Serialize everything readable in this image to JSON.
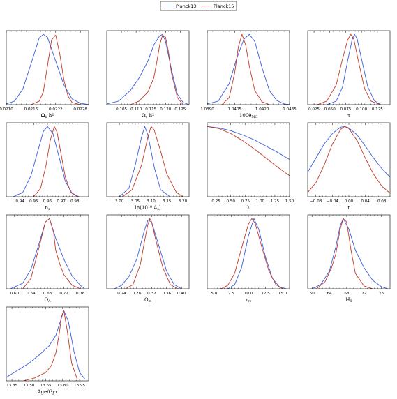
{
  "chart_data": {
    "type": "line",
    "title": "",
    "legend": {
      "placement": "top-center",
      "entries": [
        {
          "name": "Planck13",
          "color": "#3b5bdb"
        },
        {
          "name": "Planck15",
          "color": "#c0392b"
        }
      ]
    },
    "panels": [
      {
        "xlabel": "Ω_b h^2",
        "xlim": [
          0.021,
          0.023
        ],
        "xticks": [
          "0.0210",
          "0.0216",
          "0.0222",
          "0.0228"
        ],
        "xtick_values": [
          0.021,
          0.0216,
          0.0222,
          0.0228
        ],
        "series": [
          {
            "name": "Planck13",
            "x": [
              0.021,
              0.0212,
              0.0214,
              0.0216,
              0.0218,
              0.0219,
              0.022,
              0.0222,
              0.0224,
              0.0226,
              0.0228,
              0.023
            ],
            "y": [
              0.01,
              0.05,
              0.22,
              0.58,
              0.95,
              1.0,
              0.96,
              0.62,
              0.28,
              0.08,
              0.02,
              0.0
            ]
          },
          {
            "name": "Planck15",
            "x": [
              0.0216,
              0.0218,
              0.0219,
              0.022,
              0.0221,
              0.0222,
              0.0223,
              0.0224,
              0.0225,
              0.0226,
              0.0228
            ],
            "y": [
              0.0,
              0.05,
              0.18,
              0.55,
              0.92,
              0.99,
              0.72,
              0.35,
              0.12,
              0.03,
              0.0
            ]
          }
        ]
      },
      {
        "xlabel": "Ω_c h^2",
        "xlim": [
          0.1,
          0.128
        ],
        "xticks": [
          "0.105",
          "0.110",
          "0.115",
          "0.120",
          "0.125"
        ],
        "xtick_values": [
          0.105,
          0.11,
          0.115,
          0.12,
          0.125
        ],
        "series": [
          {
            "name": "Planck13",
            "x": [
              0.1,
              0.104,
              0.108,
              0.111,
              0.114,
              0.116,
              0.118,
              0.119,
              0.12,
              0.122,
              0.124,
              0.126,
              0.128
            ],
            "y": [
              0.01,
              0.05,
              0.2,
              0.38,
              0.62,
              0.85,
              0.98,
              1.0,
              0.9,
              0.5,
              0.15,
              0.03,
              0.0
            ]
          },
          {
            "name": "Planck15",
            "x": [
              0.108,
              0.111,
              0.114,
              0.116,
              0.117,
              0.118,
              0.119,
              0.12,
              0.121,
              0.122,
              0.124,
              0.126
            ],
            "y": [
              0.0,
              0.05,
              0.18,
              0.38,
              0.6,
              0.85,
              0.99,
              0.96,
              0.75,
              0.45,
              0.1,
              0.0
            ]
          }
        ]
      },
      {
        "xlabel": "100θ_MC",
        "xlim": [
          1.039,
          1.0435
        ],
        "xticks": [
          "1.0390",
          "1.0405",
          "1.0420",
          "1.0435"
        ],
        "xtick_values": [
          1.039,
          1.0405,
          1.042,
          1.0435
        ],
        "series": [
          {
            "name": "Planck13",
            "x": [
              1.039,
              1.0396,
              1.0402,
              1.0406,
              1.041,
              1.0413,
              1.0416,
              1.042,
              1.0424,
              1.0428,
              1.0432,
              1.0435
            ],
            "y": [
              0.01,
              0.05,
              0.3,
              0.65,
              0.93,
              1.0,
              0.9,
              0.52,
              0.2,
              0.06,
              0.01,
              0.0
            ]
          },
          {
            "name": "Planck15",
            "x": [
              1.0398,
              1.0402,
              1.0405,
              1.0407,
              1.0409,
              1.0411,
              1.0413,
              1.0416,
              1.042,
              1.0424
            ],
            "y": [
              0.0,
              0.1,
              0.45,
              0.82,
              1.0,
              0.85,
              0.55,
              0.2,
              0.04,
              0.0
            ]
          }
        ]
      },
      {
        "xlabel": "τ",
        "xlim": [
          0.015,
          0.145
        ],
        "xticks": [
          "0.025",
          "0.050",
          "0.075",
          "0.100",
          "0.125"
        ],
        "xtick_values": [
          0.025,
          0.05,
          0.075,
          0.1,
          0.125
        ],
        "series": [
          {
            "name": "Planck13",
            "x": [
              0.045,
              0.06,
              0.07,
              0.078,
              0.085,
              0.089,
              0.093,
              0.1,
              0.11,
              0.12,
              0.13
            ],
            "y": [
              0.0,
              0.05,
              0.25,
              0.62,
              0.92,
              1.0,
              0.94,
              0.65,
              0.25,
              0.06,
              0.0
            ]
          },
          {
            "name": "Planck15",
            "x": [
              0.03,
              0.045,
              0.06,
              0.07,
              0.078,
              0.083,
              0.088,
              0.095,
              0.105,
              0.115,
              0.13
            ],
            "y": [
              0.0,
              0.05,
              0.28,
              0.65,
              0.92,
              1.0,
              0.93,
              0.62,
              0.22,
              0.05,
              0.0
            ]
          }
        ]
      },
      {
        "xlabel": "n_s",
        "xlim": [
          0.93,
          0.99
        ],
        "xticks": [
          "0.94",
          "0.95",
          "0.96",
          "0.97",
          "0.98"
        ],
        "xtick_values": [
          0.94,
          0.95,
          0.96,
          0.97,
          0.98
        ],
        "series": [
          {
            "name": "Planck13",
            "x": [
              0.935,
              0.942,
              0.948,
              0.953,
              0.957,
              0.96,
              0.964,
              0.968,
              0.973,
              0.978,
              0.983
            ],
            "y": [
              0.0,
              0.06,
              0.3,
              0.65,
              0.93,
              1.0,
              0.9,
              0.6,
              0.22,
              0.05,
              0.0
            ]
          },
          {
            "name": "Planck15",
            "x": [
              0.95,
              0.955,
              0.959,
              0.962,
              0.965,
              0.967,
              0.97,
              0.973,
              0.977,
              0.982
            ],
            "y": [
              0.0,
              0.12,
              0.45,
              0.8,
              1.0,
              0.92,
              0.6,
              0.28,
              0.06,
              0.0
            ]
          }
        ]
      },
      {
        "xlabel": "ln(10^10 A_s)",
        "xlim": [
          2.96,
          3.22
        ],
        "xticks": [
          "3.00",
          "3.05",
          "3.10",
          "3.15",
          "3.20"
        ],
        "xtick_values": [
          3.0,
          3.05,
          3.1,
          3.15,
          3.2
        ],
        "series": [
          {
            "name": "Planck13",
            "x": [
              3.0,
              3.03,
              3.05,
              3.07,
              3.08,
              3.09,
              3.11,
              3.13,
              3.16
            ],
            "y": [
              0.0,
              0.12,
              0.45,
              0.85,
              1.0,
              0.88,
              0.42,
              0.1,
              0.0
            ]
          },
          {
            "name": "Planck15",
            "x": [
              3.01,
              3.04,
              3.07,
              3.09,
              3.1,
              3.11,
              3.13,
              3.15,
              3.18,
              3.2
            ],
            "y": [
              0.0,
              0.1,
              0.45,
              0.85,
              1.0,
              0.95,
              0.65,
              0.32,
              0.06,
              0.0
            ]
          }
        ]
      },
      {
        "xlabel": "λ",
        "xlim": [
          0.1,
          1.5
        ],
        "xticks": [
          "0.25",
          "0.50",
          "0.75",
          "1.00",
          "1.25",
          "1.50"
        ],
        "xtick_values": [
          0.25,
          0.5,
          0.75,
          1.0,
          1.25,
          1.5
        ],
        "series": [
          {
            "name": "Planck13",
            "x": [
              0.1,
              0.3,
              0.5,
              0.7,
              0.9,
              1.1,
              1.3,
              1.5
            ],
            "y": [
              1.0,
              0.98,
              0.94,
              0.88,
              0.81,
              0.72,
              0.63,
              0.53
            ]
          },
          {
            "name": "Planck15",
            "x": [
              0.1,
              0.3,
              0.5,
              0.7,
              0.9,
              1.1,
              1.3,
              1.5
            ],
            "y": [
              1.0,
              0.97,
              0.9,
              0.8,
              0.68,
              0.55,
              0.42,
              0.3
            ]
          }
        ]
      },
      {
        "xlabel": "r",
        "xlim": [
          -0.1,
          0.1
        ],
        "xticks": [
          "−0.08",
          "−0.04",
          "0.00",
          "0.04",
          "0.08"
        ],
        "xtick_values": [
          -0.08,
          -0.04,
          0.0,
          0.04,
          0.08
        ],
        "series": [
          {
            "name": "Planck13",
            "x": [
              -0.1,
              -0.08,
              -0.06,
              -0.04,
              -0.02,
              -0.01,
              0.0,
              0.02,
              0.04,
              0.06,
              0.08,
              0.1
            ],
            "y": [
              0.35,
              0.55,
              0.75,
              0.9,
              0.99,
              1.0,
              0.98,
              0.88,
              0.72,
              0.55,
              0.4,
              0.28
            ]
          },
          {
            "name": "Planck15",
            "x": [
              -0.1,
              -0.08,
              -0.06,
              -0.04,
              -0.02,
              -0.01,
              0.0,
              0.02,
              0.04,
              0.06,
              0.08,
              0.1
            ],
            "y": [
              0.06,
              0.2,
              0.45,
              0.75,
              0.96,
              1.0,
              0.97,
              0.8,
              0.55,
              0.32,
              0.15,
              0.05
            ]
          }
        ]
      },
      {
        "xlabel": "Ω_Λ",
        "xlim": [
          0.58,
          0.78
        ],
        "xticks": [
          "0.60",
          "0.64",
          "0.68",
          "0.72",
          "0.76"
        ],
        "xtick_values": [
          0.6,
          0.64,
          0.68,
          0.72,
          0.76
        ],
        "series": [
          {
            "name": "Planck13",
            "x": [
              0.59,
              0.62,
              0.64,
              0.66,
              0.675,
              0.685,
              0.7,
              0.72,
              0.74,
              0.76,
              0.77
            ],
            "y": [
              0.0,
              0.08,
              0.28,
              0.65,
              0.95,
              1.0,
              0.72,
              0.42,
              0.18,
              0.05,
              0.0
            ]
          },
          {
            "name": "Planck15",
            "x": [
              0.62,
              0.64,
              0.66,
              0.675,
              0.685,
              0.695,
              0.7,
              0.71,
              0.72,
              0.74,
              0.76
            ],
            "y": [
              0.0,
              0.15,
              0.6,
              0.95,
              1.0,
              0.8,
              0.55,
              0.35,
              0.2,
              0.05,
              0.0
            ]
          }
        ]
      },
      {
        "xlabel": "Ω_m",
        "xlim": [
          0.2,
          0.42
        ],
        "xticks": [
          "0.24",
          "0.28",
          "0.32",
          "0.36",
          "0.40"
        ],
        "xtick_values": [
          0.24,
          0.28,
          0.32,
          0.36,
          0.4
        ],
        "series": [
          {
            "name": "Planck13",
            "x": [
              0.22,
              0.24,
              0.26,
              0.28,
              0.3,
              0.31,
              0.32,
              0.34,
              0.36,
              0.38,
              0.4
            ],
            "y": [
              0.0,
              0.05,
              0.18,
              0.42,
              0.82,
              0.98,
              0.95,
              0.6,
              0.25,
              0.06,
              0.0
            ]
          },
          {
            "name": "Planck15",
            "x": [
              0.25,
              0.27,
              0.29,
              0.3,
              0.31,
              0.315,
              0.32,
              0.33,
              0.35,
              0.37,
              0.39
            ],
            "y": [
              0.0,
              0.06,
              0.35,
              0.65,
              0.92,
              1.0,
              0.95,
              0.72,
              0.3,
              0.06,
              0.0
            ]
          }
        ]
      },
      {
        "xlabel": "z_re",
        "xlim": [
          4.0,
          16.0
        ],
        "xticks": [
          "5.0",
          "7.5",
          "10.0",
          "12.5",
          "15.0"
        ],
        "xtick_values": [
          5.0,
          7.5,
          10.0,
          12.5,
          15.0
        ],
        "series": [
          {
            "name": "Planck13",
            "x": [
              7.0,
              8.0,
              9.0,
              10.0,
              10.8,
              11.5,
              12.5,
              13.5,
              14.5,
              15.5
            ],
            "y": [
              0.0,
              0.06,
              0.3,
              0.75,
              1.0,
              0.85,
              0.45,
              0.15,
              0.03,
              0.0
            ]
          },
          {
            "name": "Planck15",
            "x": [
              6.0,
              7.0,
              8.0,
              9.0,
              10.0,
              10.5,
              11.0,
              12.0,
              13.0,
              14.0,
              15.0
            ],
            "y": [
              0.0,
              0.05,
              0.22,
              0.58,
              0.92,
              1.0,
              0.93,
              0.58,
              0.25,
              0.06,
              0.0
            ]
          }
        ]
      },
      {
        "xlabel": "H_0",
        "xlim": [
          59.0,
          78.0
        ],
        "xticks": [
          "60",
          "64",
          "68",
          "72",
          "76"
        ],
        "xtick_values": [
          60,
          64,
          68,
          72,
          76
        ],
        "series": [
          {
            "name": "Planck13",
            "x": [
              60.0,
              62.0,
              64.0,
              65.5,
              66.5,
              67.2,
              68.5,
              70.0,
              72.0,
              74.0,
              76.0,
              77.5
            ],
            "y": [
              0.0,
              0.06,
              0.25,
              0.6,
              0.9,
              1.0,
              0.85,
              0.55,
              0.3,
              0.12,
              0.03,
              0.0
            ]
          },
          {
            "name": "Planck15",
            "x": [
              61.0,
              63.0,
              64.5,
              65.5,
              66.5,
              67.2,
              68.0,
              69.0,
              70.0,
              72.0,
              74.0
            ],
            "y": [
              0.0,
              0.1,
              0.3,
              0.5,
              0.85,
              1.0,
              0.95,
              0.55,
              0.22,
              0.04,
              0.0
            ]
          }
        ]
      },
      {
        "xlabel": "Age/Gyr",
        "xlim": [
          13.3,
          14.03
        ],
        "xticks": [
          "13.35",
          "13.50",
          "13.65",
          "13.80",
          "13.95"
        ],
        "xtick_values": [
          13.35,
          13.5,
          13.65,
          13.8,
          13.95
        ],
        "series": [
          {
            "name": "Planck13",
            "x": [
              13.3,
              13.4,
              13.5,
              13.6,
              13.68,
              13.74,
              13.78,
              13.81,
              13.85,
              13.9,
              13.95,
              14.0
            ],
            "y": [
              0.05,
              0.15,
              0.25,
              0.38,
              0.5,
              0.65,
              0.85,
              1.0,
              0.85,
              0.42,
              0.12,
              0.02
            ]
          },
          {
            "name": "Planck15",
            "x": [
              13.45,
              13.55,
              13.65,
              13.7,
              13.74,
              13.77,
              13.79,
              13.81,
              13.84,
              13.88,
              13.93
            ],
            "y": [
              0.0,
              0.04,
              0.12,
              0.22,
              0.4,
              0.68,
              0.92,
              1.0,
              0.72,
              0.25,
              0.02
            ]
          }
        ]
      }
    ]
  }
}
